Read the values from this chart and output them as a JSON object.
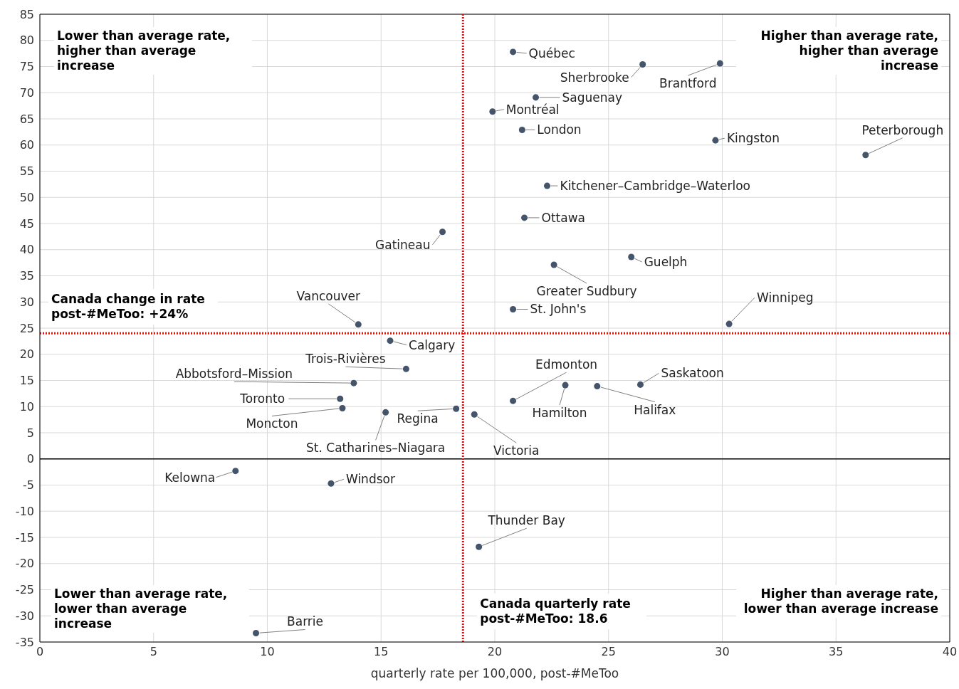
{
  "chart_data": {
    "type": "scatter",
    "xlabel": "quarterly rate per 100,000, post-#MeToo",
    "xlim": [
      0,
      40
    ],
    "xticks": [
      0,
      5,
      10,
      15,
      20,
      25,
      30,
      35,
      40
    ],
    "ylim": [
      -35,
      85
    ],
    "yticks": [
      -35,
      -30,
      -25,
      -20,
      -15,
      -10,
      -5,
      0,
      5,
      10,
      15,
      20,
      25,
      30,
      35,
      40,
      45,
      50,
      55,
      60,
      65,
      70,
      75,
      80,
      85
    ],
    "grid": true,
    "marker": "circle",
    "series": [
      {
        "color": "#44546a",
        "x": [
          20.8,
          26.5,
          29.9,
          21.8,
          19.9,
          21.2,
          29.7,
          36.3,
          22.3,
          21.3,
          17.7,
          26.0,
          22.6,
          20.8,
          14.0,
          30.3,
          15.4,
          16.1,
          13.8,
          13.2,
          13.3,
          20.8,
          23.1,
          24.5,
          26.4,
          18.3,
          15.2,
          19.1,
          8.6,
          12.8,
          19.3,
          9.5
        ],
        "values": [
          77.8,
          75.4,
          75.6,
          69.1,
          66.4,
          62.9,
          60.9,
          58.1,
          52.2,
          46.1,
          43.4,
          38.6,
          37.1,
          28.6,
          25.7,
          25.8,
          22.6,
          17.2,
          14.5,
          11.5,
          9.7,
          11.1,
          14.1,
          13.9,
          14.2,
          9.6,
          8.9,
          8.5,
          -2.3,
          -4.7,
          -16.8,
          -33.3
        ]
      }
    ],
    "ref_lines": [
      {
        "axis": "y",
        "value": 0,
        "label": null,
        "color": "#000000",
        "line_style": "solid"
      },
      {
        "axis": "x",
        "value": 18.6,
        "label": "Canada quarterly rate post-#MeToo: 18.6",
        "color": "#ff0000",
        "line_style": "dotted"
      },
      {
        "axis": "y",
        "value": 24,
        "label": "Canada change in rate post-#MeToo: +24%",
        "color": "#ff0000",
        "line_style": "dotted"
      }
    ],
    "annotations": [
      "Lower than average rate, higher than average increase",
      "Higher than average rate, higher than average increase",
      "Lower than average rate, lower than average increase",
      "Higher than average rate, lower than average increase",
      {
        "text": "Québec",
        "x": 20.8,
        "y": 77.8
      },
      {
        "text": "Sherbrooke",
        "x": 26.5,
        "y": 75.4
      },
      {
        "text": "Brantford",
        "x": 29.9,
        "y": 75.6
      },
      {
        "text": "Saguenay",
        "x": 21.8,
        "y": 69.1
      },
      {
        "text": "Montréal",
        "x": 19.9,
        "y": 66.4
      },
      {
        "text": "London",
        "x": 21.2,
        "y": 62.9
      },
      {
        "text": "Kingston",
        "x": 29.7,
        "y": 60.9
      },
      {
        "text": "Peterborough",
        "x": 36.3,
        "y": 58.1
      },
      {
        "text": "Kitchener–Cambridge–Waterloo",
        "x": 22.3,
        "y": 52.2
      },
      {
        "text": "Ottawa",
        "x": 21.3,
        "y": 46.1
      },
      {
        "text": "Gatineau",
        "x": 17.7,
        "y": 43.4
      },
      {
        "text": "Guelph",
        "x": 26.0,
        "y": 38.6
      },
      {
        "text": "Greater Sudbury",
        "x": 22.6,
        "y": 37.1
      },
      {
        "text": "St. John's",
        "x": 20.8,
        "y": 28.6
      },
      {
        "text": "Vancouver",
        "x": 14.0,
        "y": 25.7
      },
      {
        "text": "Winnipeg",
        "x": 30.3,
        "y": 25.8
      },
      {
        "text": "Calgary",
        "x": 15.4,
        "y": 22.6
      },
      {
        "text": "Trois-Rivières",
        "x": 16.1,
        "y": 17.2
      },
      {
        "text": "Abbotsford–Mission",
        "x": 13.8,
        "y": 14.5
      },
      {
        "text": "Toronto",
        "x": 13.2,
        "y": 11.5
      },
      {
        "text": "Moncton",
        "x": 13.3,
        "y": 9.7
      },
      {
        "text": "Edmonton",
        "x": 20.8,
        "y": 11.1
      },
      {
        "text": "Hamilton",
        "x": 23.1,
        "y": 14.1
      },
      {
        "text": "Halifax",
        "x": 24.5,
        "y": 13.9
      },
      {
        "text": "Saskatoon",
        "x": 26.4,
        "y": 14.2
      },
      {
        "text": "Regina",
        "x": 18.3,
        "y": 9.6
      },
      {
        "text": "St. Catharines–Niagara",
        "x": 15.2,
        "y": 8.9
      },
      {
        "text": "Victoria",
        "x": 19.1,
        "y": 8.5
      },
      {
        "text": "Kelowna",
        "x": 8.6,
        "y": -2.3
      },
      {
        "text": "Windsor",
        "x": 12.8,
        "y": -4.7
      },
      {
        "text": "Thunder Bay",
        "x": 19.3,
        "y": -16.8
      },
      {
        "text": "Barrie",
        "x": 9.5,
        "y": -33.3
      }
    ]
  }
}
